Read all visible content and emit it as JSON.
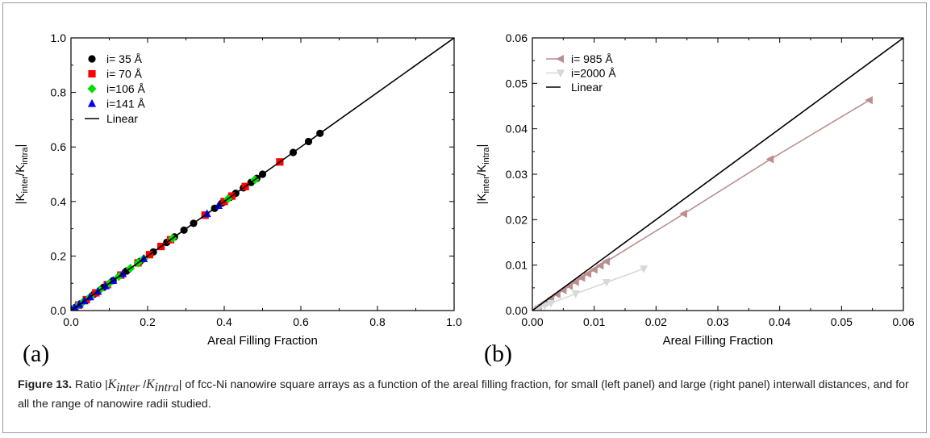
{
  "caption": {
    "label": "Figure 13.",
    "prefix": " Ratio |",
    "k_inter": "K",
    "inter_sub": "inter",
    "slash": " /",
    "k_intra": "K",
    "intra_sub": "intra",
    "rest": "| of fcc-Ni nanowire square arrays as a function of the areal filling fraction, for small (left panel) and large (right panel) interwall distances, and for all the range of nanowire radii studied."
  },
  "chart_data": [
    {
      "type": "scatter",
      "panel_label": "(a)",
      "xlabel": "Areal Filling Fraction",
      "ylabel": "|K",
      "ylabel_sub1": "inter",
      "ylabel_mid": "/K",
      "ylabel_sub2": "intra",
      "ylabel_end": "|",
      "xlim": [
        0,
        1
      ],
      "ylim": [
        0,
        1
      ],
      "xticks": [
        "0.0",
        "0.2",
        "0.4",
        "0.6",
        "0.8",
        "1.0"
      ],
      "yticks": [
        "0.0",
        "0.2",
        "0.4",
        "0.6",
        "0.8",
        "1.0"
      ],
      "legend_position": "top-left",
      "series": [
        {
          "name": "i=  35 Å",
          "marker": "circle",
          "color": "#000000",
          "x": [
            0.0,
            0.012,
            0.025,
            0.04,
            0.06,
            0.085,
            0.11,
            0.145,
            0.18,
            0.215,
            0.25,
            0.27,
            0.295,
            0.32,
            0.35,
            0.375,
            0.395,
            0.415,
            0.43,
            0.45,
            0.47,
            0.485,
            0.5,
            0.58,
            0.62,
            0.65
          ],
          "y": [
            0.0,
            0.012,
            0.025,
            0.04,
            0.06,
            0.085,
            0.11,
            0.145,
            0.18,
            0.215,
            0.25,
            0.27,
            0.295,
            0.32,
            0.35,
            0.375,
            0.395,
            0.415,
            0.43,
            0.45,
            0.47,
            0.485,
            0.5,
            0.58,
            0.62,
            0.65
          ]
        },
        {
          "name": "i=  70 Å",
          "marker": "square",
          "color": "#ff0000",
          "x": [
            0.005,
            0.02,
            0.04,
            0.065,
            0.095,
            0.13,
            0.175,
            0.205,
            0.235,
            0.26,
            0.35,
            0.4,
            0.42,
            0.455,
            0.545
          ],
          "y": [
            0.005,
            0.02,
            0.04,
            0.065,
            0.095,
            0.13,
            0.175,
            0.205,
            0.235,
            0.26,
            0.35,
            0.4,
            0.42,
            0.455,
            0.545
          ]
        },
        {
          "name": "i=106 Å",
          "marker": "diamond",
          "color": "#00e000",
          "x": [
            0.003,
            0.015,
            0.03,
            0.05,
            0.075,
            0.1,
            0.125,
            0.155,
            0.175,
            0.19,
            0.265,
            0.41,
            0.48
          ],
          "y": [
            0.003,
            0.015,
            0.03,
            0.05,
            0.075,
            0.1,
            0.125,
            0.155,
            0.175,
            0.19,
            0.265,
            0.41,
            0.48
          ]
        },
        {
          "name": "i=141 Å",
          "marker": "triangle-up",
          "color": "#0000ff",
          "x": [
            0.002,
            0.01,
            0.022,
            0.035,
            0.05,
            0.07,
            0.09,
            0.11,
            0.135,
            0.19,
            0.355,
            0.385
          ],
          "y": [
            0.002,
            0.01,
            0.022,
            0.035,
            0.05,
            0.07,
            0.09,
            0.11,
            0.135,
            0.19,
            0.355,
            0.385
          ]
        },
        {
          "name": "Linear",
          "marker": "line",
          "color": "#000000",
          "x": [
            0,
            1
          ],
          "y": [
            0,
            1
          ]
        }
      ]
    },
    {
      "type": "line",
      "panel_label": "(b)",
      "xlabel": "Areal Filling Fraction",
      "ylabel": "|K",
      "ylabel_sub1": "inter",
      "ylabel_mid": "/K",
      "ylabel_sub2": "intra",
      "ylabel_end": "|",
      "xlim": [
        0,
        0.06
      ],
      "ylim": [
        0,
        0.06
      ],
      "xticks": [
        "0.00",
        "0.01",
        "0.02",
        "0.03",
        "0.04",
        "0.05",
        "0.06"
      ],
      "yticks": [
        "0.00",
        "0.01",
        "0.02",
        "0.03",
        "0.04",
        "0.05",
        "0.06"
      ],
      "legend_position": "top-left",
      "series": [
        {
          "name": "i=  985 Å",
          "marker": "triangle-left",
          "color": "#bc8f8f",
          "x": [
            0.0,
            0.001,
            0.002,
            0.003,
            0.004,
            0.005,
            0.006,
            0.007,
            0.008,
            0.009,
            0.01,
            0.011,
            0.012,
            0.0245,
            0.0385,
            0.0545
          ],
          "y": [
            0.0,
            0.0009,
            0.0018,
            0.0027,
            0.0036,
            0.0045,
            0.0054,
            0.0063,
            0.0072,
            0.0081,
            0.009,
            0.0099,
            0.0108,
            0.0213,
            0.0333,
            0.0463
          ]
        },
        {
          "name": "i=2000 Å",
          "marker": "triangle-down",
          "color": "#d8d8d8",
          "x": [
            0.0,
            0.001,
            0.002,
            0.003,
            0.007,
            0.012,
            0.018
          ],
          "y": [
            0.0,
            0.0005,
            0.0011,
            0.0016,
            0.0037,
            0.0062,
            0.0092
          ]
        },
        {
          "name": "Linear",
          "marker": "line",
          "color": "#000000",
          "x": [
            0,
            0.06
          ],
          "y": [
            0,
            0.06
          ]
        }
      ]
    }
  ]
}
